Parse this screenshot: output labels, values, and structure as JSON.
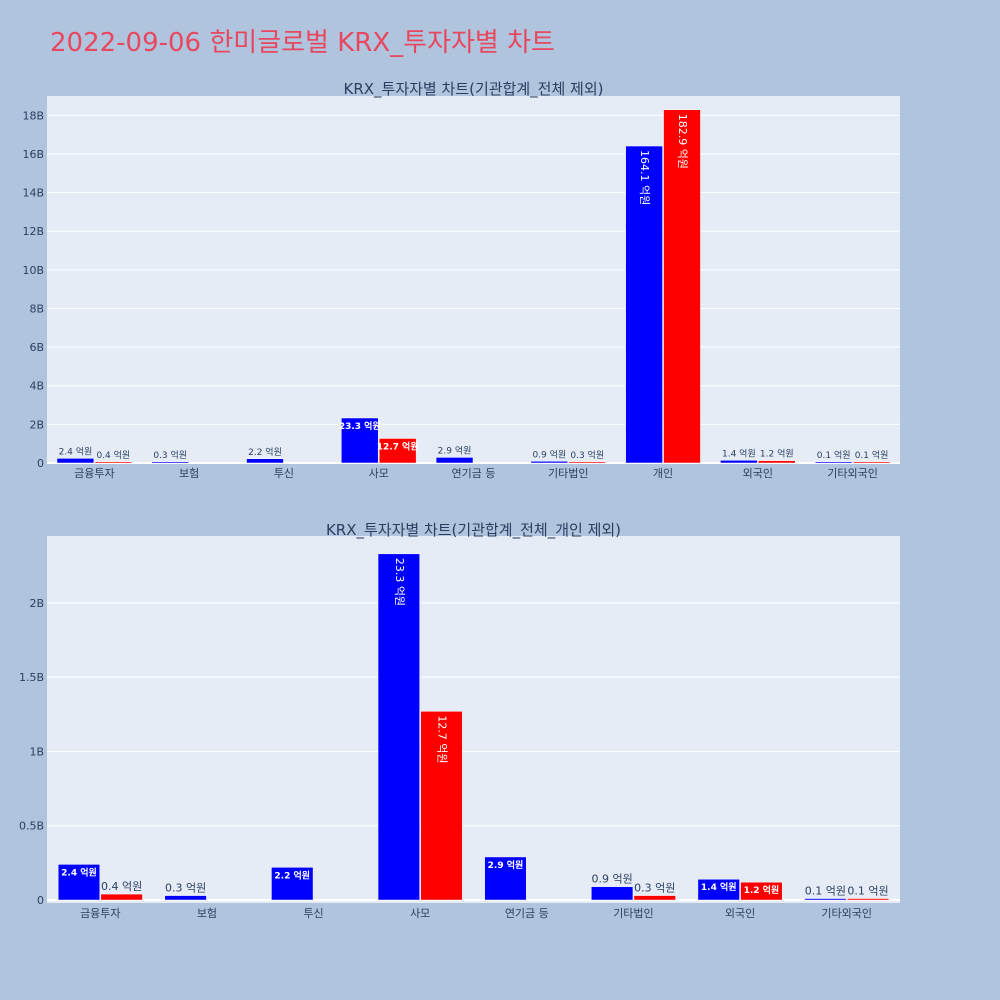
{
  "title": "2022-09-06 한미글로벌 KRX_투자자별 차트",
  "colors": {
    "buy": "#0000ff",
    "sell": "#ff0000",
    "plot_bg": "#e5ecf6",
    "page_bg": "#b0c4de",
    "title": "#e8485f"
  },
  "chart_data": [
    {
      "type": "bar",
      "title": "KRX_투자자별 차트(기관합계_전체 제외)",
      "categories": [
        "금융투자",
        "보험",
        "투신",
        "사모",
        "연기금 등",
        "기타법인",
        "개인",
        "외국인",
        "기타외국인"
      ],
      "ylim": [
        0,
        19
      ],
      "yticks": [
        0,
        2,
        4,
        6,
        8,
        10,
        12,
        14,
        16,
        18
      ],
      "ytick_labels": [
        "0",
        "2B",
        "4B",
        "6B",
        "8B",
        "10B",
        "12B",
        "14B",
        "16B",
        "18B"
      ],
      "grid": true,
      "series": [
        {
          "values": [
            0.24,
            0.03,
            0.22,
            2.33,
            0.29,
            0.09,
            16.41,
            0.14,
            0.01
          ],
          "labels": [
            "2.4 억원",
            "0.3 억원",
            "2.2 억원",
            "23.3 억원",
            "2.9 억원",
            "0.9 억원",
            "164.1 억원",
            "1.4 억원",
            "0.1 억원"
          ]
        },
        {
          "values": [
            0.04,
            null,
            null,
            1.27,
            null,
            0.03,
            18.29,
            0.12,
            0.01
          ],
          "labels": [
            "0.4 억원",
            "",
            "",
            "12.7 억원",
            "",
            "0.3 억원",
            "182.9 억원",
            "1.2 억원",
            "0.1 억원"
          ]
        }
      ]
    },
    {
      "type": "bar",
      "title": "KRX_투자자별 차트(기관합계_전체_개인 제외)",
      "categories": [
        "금융투자",
        "보험",
        "투신",
        "사모",
        "연기금 등",
        "기타법인",
        "외국인",
        "기타외국인"
      ],
      "ylim": [
        -0.02,
        2.45
      ],
      "yticks": [
        0,
        0.5,
        1,
        1.5,
        2
      ],
      "ytick_labels": [
        "0",
        "0.5B",
        "1B",
        "1.5B",
        "2B"
      ],
      "grid": true,
      "series": [
        {
          "values": [
            0.24,
            0.03,
            0.22,
            2.33,
            0.29,
            0.09,
            0.14,
            0.01
          ],
          "labels": [
            "2.4 억원",
            "0.3 억원",
            "2.2 억원",
            "23.3 억원",
            "2.9 억원",
            "0.9 억원",
            "1.4 억원",
            "0.1 억원"
          ]
        },
        {
          "values": [
            0.04,
            null,
            null,
            1.27,
            null,
            0.03,
            0.12,
            0.01
          ],
          "labels": [
            "0.4 억원",
            "",
            "",
            "12.7 억원",
            "",
            "0.3 억원",
            "1.2 억원",
            "0.1 억원"
          ]
        }
      ]
    }
  ]
}
